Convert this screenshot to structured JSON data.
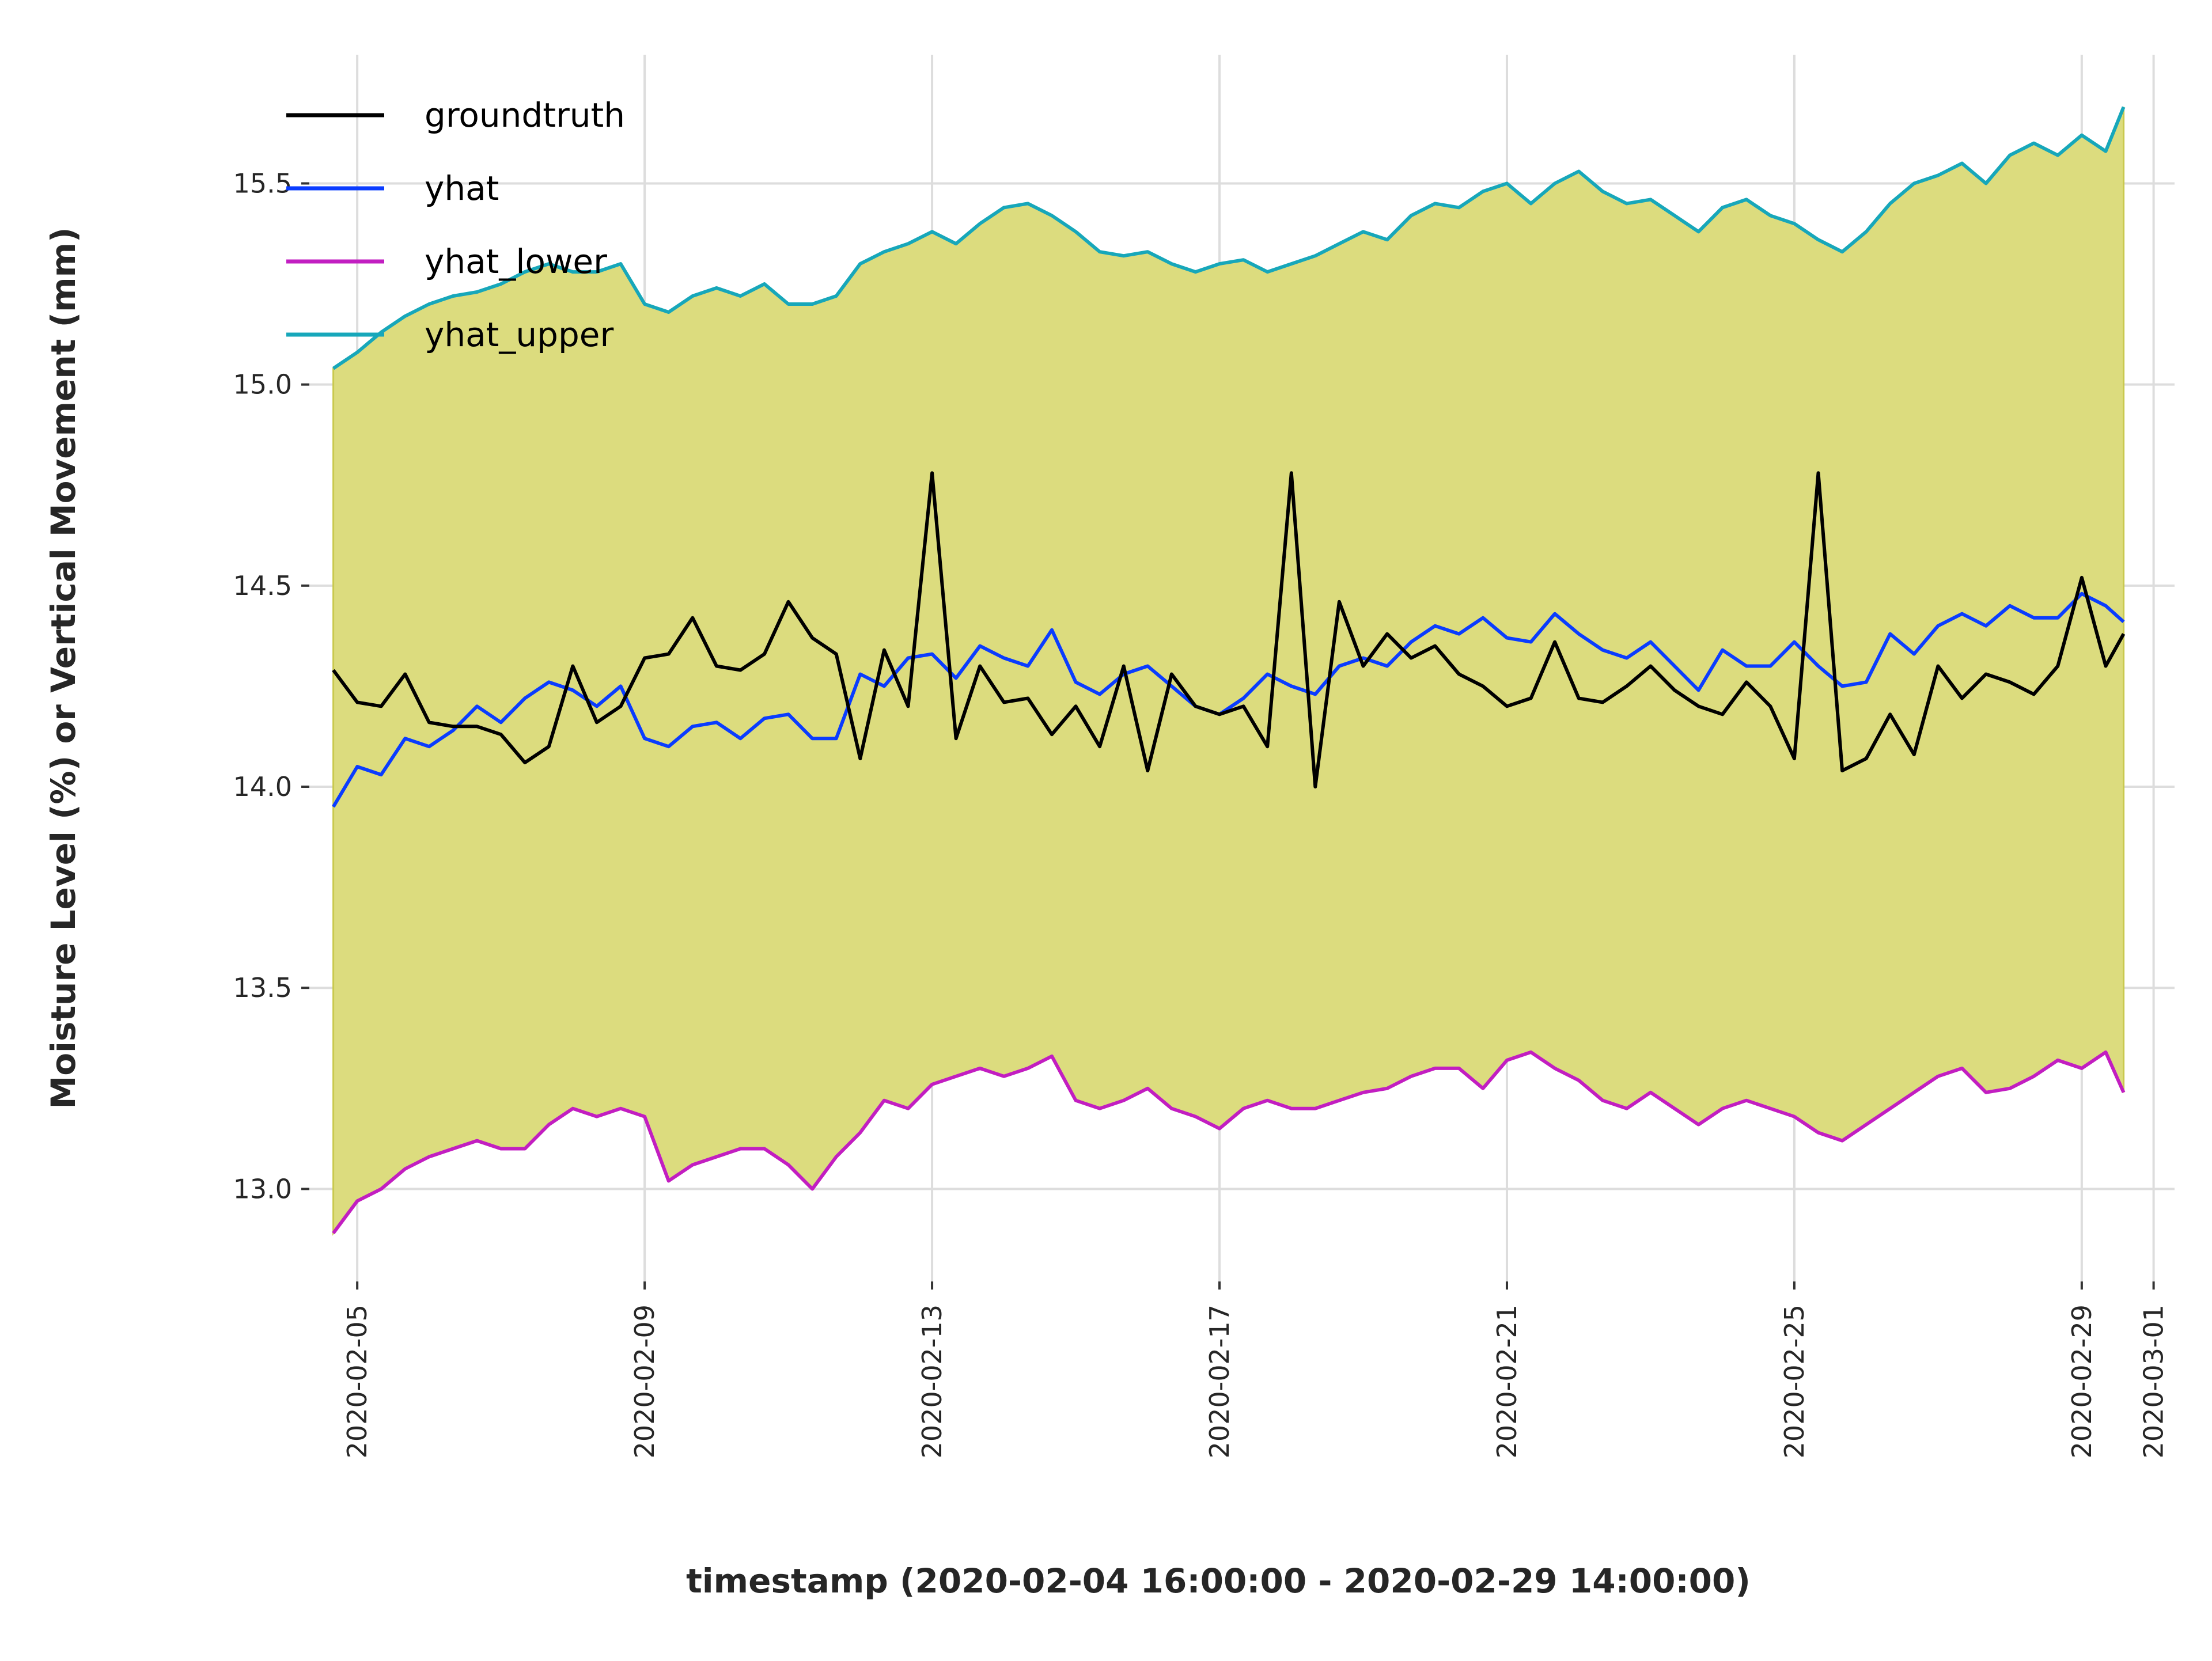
{
  "chart_data": {
    "type": "line",
    "xlabel": "timestamp (2020-02-04 16:00:00 - 2020-02-29 14:00:00)",
    "ylabel": "Moisture Level (%) or Vertical Movement (mm)",
    "xlim": [
      "2020-02-04 08:00",
      "2020-03-01 07:00"
    ],
    "ylim": [
      12.77,
      15.82
    ],
    "x_ticks": [
      "2020-02-05",
      "2020-02-09",
      "2020-02-13",
      "2020-02-17",
      "2020-02-21",
      "2020-02-25",
      "2020-02-29",
      "2020-03-01"
    ],
    "y_ticks": [
      "13.0",
      "13.5",
      "14.0",
      "14.5",
      "15.0",
      "15.5"
    ],
    "grid": true,
    "legend_position": "top-left",
    "fill_between": {
      "lower": "yhat_lower",
      "upper": "yhat_upper",
      "color": "#dcdc7e"
    },
    "x_dates": [
      "2020-02-04 16:00",
      "2020-02-05 00:00",
      "2020-02-05 08:00",
      "2020-02-05 16:00",
      "2020-02-06 00:00",
      "2020-02-06 08:00",
      "2020-02-06 16:00",
      "2020-02-07 00:00",
      "2020-02-07 08:00",
      "2020-02-07 16:00",
      "2020-02-08 00:00",
      "2020-02-08 08:00",
      "2020-02-08 16:00",
      "2020-02-09 00:00",
      "2020-02-09 08:00",
      "2020-02-09 16:00",
      "2020-02-10 00:00",
      "2020-02-10 08:00",
      "2020-02-10 16:00",
      "2020-02-11 00:00",
      "2020-02-11 08:00",
      "2020-02-11 16:00",
      "2020-02-12 00:00",
      "2020-02-12 08:00",
      "2020-02-12 16:00",
      "2020-02-13 00:00",
      "2020-02-13 08:00",
      "2020-02-13 16:00",
      "2020-02-14 00:00",
      "2020-02-14 08:00",
      "2020-02-14 16:00",
      "2020-02-15 00:00",
      "2020-02-15 08:00",
      "2020-02-15 16:00",
      "2020-02-16 00:00",
      "2020-02-16 08:00",
      "2020-02-16 16:00",
      "2020-02-17 00:00",
      "2020-02-17 08:00",
      "2020-02-17 16:00",
      "2020-02-18 00:00",
      "2020-02-18 08:00",
      "2020-02-18 16:00",
      "2020-02-19 00:00",
      "2020-02-19 08:00",
      "2020-02-19 16:00",
      "2020-02-20 00:00",
      "2020-02-20 08:00",
      "2020-02-20 16:00",
      "2020-02-21 00:00",
      "2020-02-21 08:00",
      "2020-02-21 16:00",
      "2020-02-22 00:00",
      "2020-02-22 08:00",
      "2020-02-22 16:00",
      "2020-02-23 00:00",
      "2020-02-23 08:00",
      "2020-02-23 16:00",
      "2020-02-24 00:00",
      "2020-02-24 08:00",
      "2020-02-24 16:00",
      "2020-02-25 00:00",
      "2020-02-25 08:00",
      "2020-02-25 16:00",
      "2020-02-26 00:00",
      "2020-02-26 08:00",
      "2020-02-26 16:00",
      "2020-02-27 00:00",
      "2020-02-27 08:00",
      "2020-02-27 16:00",
      "2020-02-28 00:00",
      "2020-02-28 08:00",
      "2020-02-28 16:00",
      "2020-02-29 00:00",
      "2020-02-29 08:00",
      "2020-02-29 14:00"
    ],
    "series": [
      {
        "name": "groundtruth",
        "color": "#000000",
        "values": [
          14.29,
          14.21,
          14.2,
          14.28,
          14.16,
          14.15,
          14.15,
          14.13,
          14.06,
          14.1,
          14.3,
          14.16,
          14.2,
          14.32,
          14.33,
          14.42,
          14.3,
          14.29,
          14.33,
          14.46,
          14.37,
          14.33,
          14.07,
          14.34,
          14.2,
          14.78,
          14.12,
          14.3,
          14.21,
          14.22,
          14.13,
          14.2,
          14.1,
          14.3,
          14.04,
          14.28,
          14.2,
          14.18,
          14.2,
          14.1,
          14.78,
          14.0,
          14.46,
          14.3,
          14.38,
          14.32,
          14.35,
          14.28,
          14.25,
          14.2,
          14.22,
          14.36,
          14.22,
          14.21,
          14.25,
          14.3,
          14.24,
          14.2,
          14.18,
          14.26,
          14.2,
          14.07,
          14.78,
          14.04,
          14.07,
          14.18,
          14.08,
          14.3,
          14.22,
          14.28,
          14.26,
          14.23,
          14.3,
          14.52,
          14.3,
          14.38
        ]
      },
      {
        "name": "yhat",
        "color": "#0a3cff",
        "values": [
          13.95,
          14.05,
          14.03,
          14.12,
          14.1,
          14.14,
          14.2,
          14.16,
          14.22,
          14.26,
          14.24,
          14.2,
          14.25,
          14.12,
          14.1,
          14.15,
          14.16,
          14.12,
          14.17,
          14.18,
          14.12,
          14.12,
          14.28,
          14.25,
          14.32,
          14.33,
          14.27,
          14.35,
          14.32,
          14.3,
          14.39,
          14.26,
          14.23,
          14.28,
          14.3,
          14.25,
          14.2,
          14.18,
          14.22,
          14.28,
          14.25,
          14.23,
          14.3,
          14.32,
          14.3,
          14.36,
          14.4,
          14.38,
          14.42,
          14.37,
          14.36,
          14.43,
          14.38,
          14.34,
          14.32,
          14.36,
          14.3,
          14.24,
          14.34,
          14.3,
          14.3,
          14.36,
          14.3,
          14.25,
          14.26,
          14.38,
          14.33,
          14.4,
          14.43,
          14.4,
          14.45,
          14.42,
          14.42,
          14.48,
          14.45,
          14.41
        ]
      },
      {
        "name": "yhat_lower",
        "color": "#c21ec1",
        "values": [
          12.89,
          12.97,
          13.0,
          13.05,
          13.08,
          13.1,
          13.12,
          13.1,
          13.1,
          13.16,
          13.2,
          13.18,
          13.2,
          13.18,
          13.02,
          13.06,
          13.08,
          13.1,
          13.1,
          13.06,
          13.0,
          13.08,
          13.14,
          13.22,
          13.2,
          13.26,
          13.28,
          13.3,
          13.28,
          13.3,
          13.33,
          13.22,
          13.2,
          13.22,
          13.25,
          13.2,
          13.18,
          13.15,
          13.2,
          13.22,
          13.2,
          13.2,
          13.22,
          13.24,
          13.25,
          13.28,
          13.3,
          13.3,
          13.25,
          13.32,
          13.34,
          13.3,
          13.27,
          13.22,
          13.2,
          13.24,
          13.2,
          13.16,
          13.2,
          13.22,
          13.2,
          13.18,
          13.14,
          13.12,
          13.16,
          13.2,
          13.24,
          13.28,
          13.3,
          13.24,
          13.25,
          13.28,
          13.32,
          13.3,
          13.34,
          13.24
        ]
      },
      {
        "name": "yhat_upper",
        "color": "#17a7ba",
        "values": [
          15.04,
          15.08,
          15.13,
          15.17,
          15.2,
          15.22,
          15.23,
          15.25,
          15.28,
          15.3,
          15.28,
          15.28,
          15.3,
          15.2,
          15.18,
          15.22,
          15.24,
          15.22,
          15.25,
          15.2,
          15.2,
          15.22,
          15.3,
          15.33,
          15.35,
          15.38,
          15.35,
          15.4,
          15.44,
          15.45,
          15.42,
          15.38,
          15.33,
          15.32,
          15.33,
          15.3,
          15.28,
          15.3,
          15.31,
          15.28,
          15.3,
          15.32,
          15.35,
          15.38,
          15.36,
          15.42,
          15.45,
          15.44,
          15.48,
          15.5,
          15.45,
          15.5,
          15.53,
          15.48,
          15.45,
          15.46,
          15.42,
          15.38,
          15.44,
          15.46,
          15.42,
          15.4,
          15.36,
          15.33,
          15.38,
          15.45,
          15.5,
          15.52,
          15.55,
          15.5,
          15.57,
          15.6,
          15.57,
          15.62,
          15.58,
          15.69
        ]
      }
    ]
  }
}
